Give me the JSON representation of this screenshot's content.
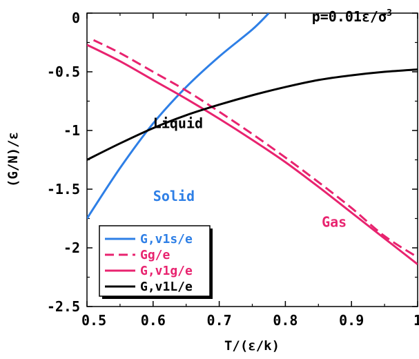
{
  "chart_data": {
    "type": "line",
    "title": "",
    "xlabel": "T/(ε/k)",
    "ylabel": "(G/N)/ε",
    "xlim": [
      0.5,
      1.0
    ],
    "ylim": [
      -2.5,
      0.0
    ],
    "xticks": [
      0.5,
      0.6,
      0.7,
      0.8,
      0.9,
      1.0
    ],
    "xtick_labels": [
      "0.5",
      "0.6",
      "0.7",
      "0.8",
      "0.9",
      "1"
    ],
    "yticks": [
      0.0,
      -0.5,
      -1.0,
      -1.5,
      -2.0,
      -2.5
    ],
    "ytick_labels": [
      "0",
      "-0.5",
      "-1",
      "-1.5",
      "-2",
      "-2.5"
    ],
    "grid": false,
    "legend_position": "bottom-left",
    "annotations": [
      {
        "text_parts": [
          "p=0.01ε/σ",
          "3"
        ],
        "x": 0.84,
        "y": -0.07
      },
      {
        "text": "Liquid",
        "x": 0.6,
        "y": -0.98,
        "color": "#000000"
      },
      {
        "text": "Solid",
        "x": 0.6,
        "y": -1.6,
        "color": "#2e7fe6"
      },
      {
        "text": "Gas",
        "x": 0.855,
        "y": -1.82,
        "color": "#e8236f"
      }
    ],
    "series": [
      {
        "name": "G,v1s/e",
        "color": "#2e7fe6",
        "dash": false,
        "x": [
          0.5,
          0.55,
          0.6,
          0.65,
          0.7,
          0.75,
          0.775
        ],
        "y": [
          -1.75,
          -1.32,
          -0.94,
          -0.63,
          -0.37,
          -0.14,
          0.0
        ]
      },
      {
        "name": "Gg/e",
        "color": "#e8236f",
        "dash": true,
        "x": [
          0.51,
          0.55,
          0.6,
          0.65,
          0.7,
          0.75,
          0.8,
          0.85,
          0.9,
          0.95,
          1.0
        ],
        "y": [
          -0.23,
          -0.34,
          -0.5,
          -0.66,
          -0.84,
          -1.03,
          -1.23,
          -1.44,
          -1.66,
          -1.9,
          -2.08
        ]
      },
      {
        "name": "G,v1g/e",
        "color": "#e8236f",
        "dash": false,
        "x": [
          0.5,
          0.55,
          0.6,
          0.65,
          0.7,
          0.75,
          0.8,
          0.85,
          0.9,
          0.95,
          1.0
        ],
        "y": [
          -0.27,
          -0.41,
          -0.57,
          -0.73,
          -0.9,
          -1.08,
          -1.27,
          -1.48,
          -1.7,
          -1.92,
          -2.14
        ]
      },
      {
        "name": "G,v1L/e",
        "color": "#000000",
        "dash": false,
        "x": [
          0.5,
          0.55,
          0.6,
          0.65,
          0.7,
          0.75,
          0.8,
          0.85,
          0.9,
          0.95,
          1.0
        ],
        "y": [
          -1.25,
          -1.11,
          -0.98,
          -0.87,
          -0.78,
          -0.7,
          -0.63,
          -0.57,
          -0.53,
          -0.5,
          -0.48
        ]
      }
    ]
  }
}
